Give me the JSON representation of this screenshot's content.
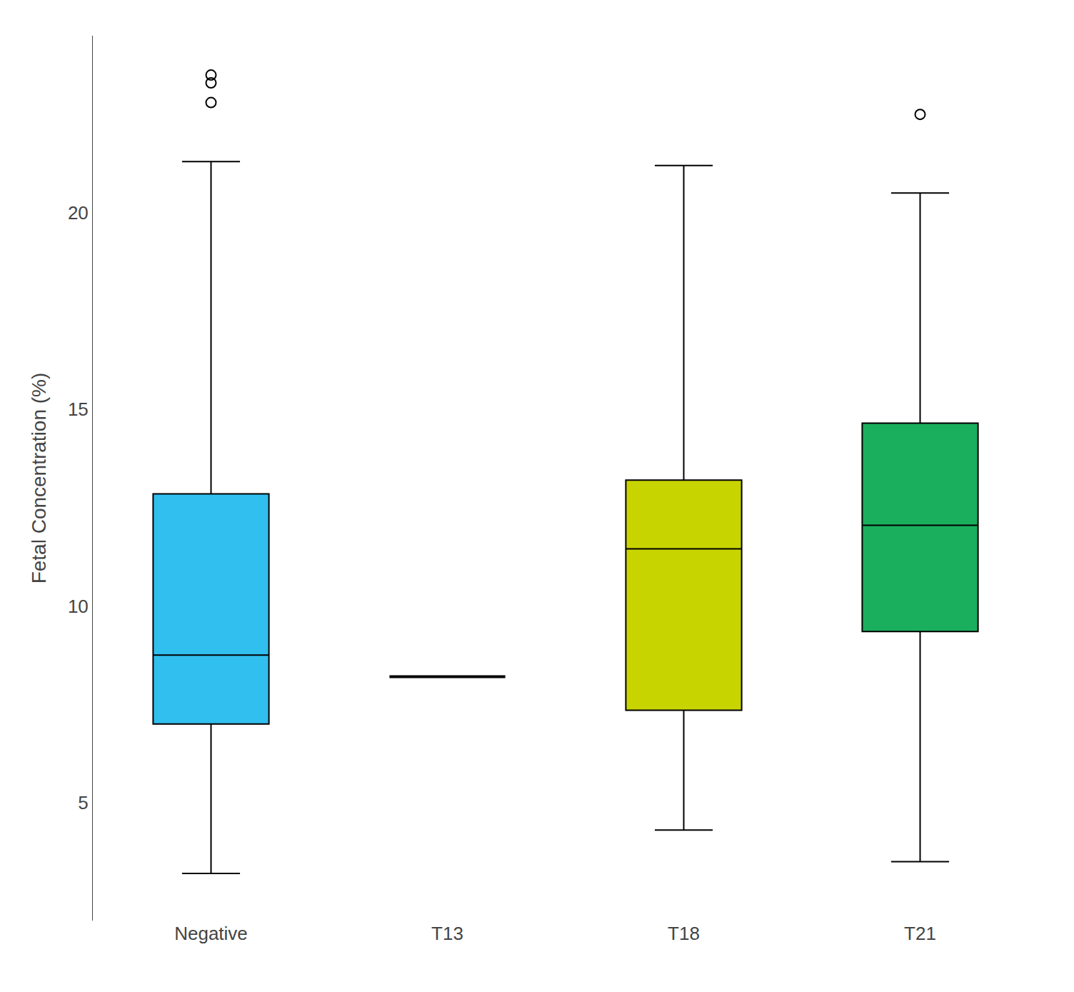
{
  "chart_data": {
    "type": "box",
    "categories": [
      "Negative",
      "T13",
      "T18",
      "T21"
    ],
    "colors": [
      "#30BFEF",
      "#FFFFFF",
      "#C8D400",
      "#1AAF5D"
    ],
    "q1": [
      7.0,
      8.2,
      7.35,
      9.35
    ],
    "median": [
      8.75,
      8.2,
      11.45,
      12.05
    ],
    "q3": [
      12.85,
      8.2,
      13.2,
      14.65
    ],
    "whisker_low": [
      3.2,
      null,
      4.3,
      3.5
    ],
    "whisker_high": [
      21.3,
      null,
      21.2,
      20.5
    ],
    "outliers": [
      [
        22.8,
        23.3,
        23.5
      ],
      [],
      [],
      [
        22.5
      ]
    ],
    "ylabel": "Fetal Concentration (%)",
    "ylim": [
      2.0,
      24.5
    ],
    "yticks": [
      5,
      10,
      15,
      20
    ],
    "grid": false
  }
}
